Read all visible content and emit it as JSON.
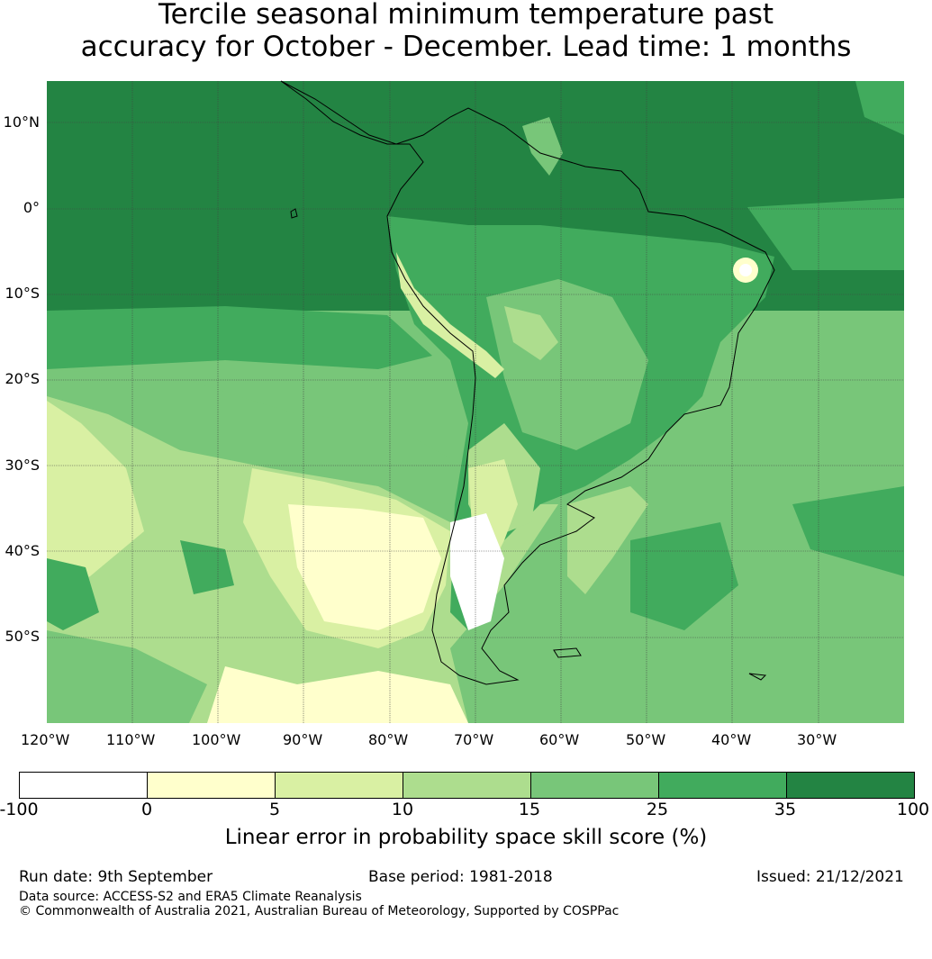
{
  "title_line1": "Tercile seasonal minimum temperature past",
  "title_line2": "accuracy for October - December. Lead time: 1 months",
  "latitude_labels": [
    "10°N",
    "0°",
    "10°S",
    "20°S",
    "30°S",
    "40°S",
    "50°S"
  ],
  "longitude_labels": [
    "120°W",
    "110°W",
    "100°W",
    "90°W",
    "80°W",
    "70°W",
    "60°W",
    "50°W",
    "40°W",
    "30°W"
  ],
  "colorbar": {
    "ticks": [
      "-100",
      "0",
      "5",
      "10",
      "15",
      "25",
      "35",
      "100"
    ],
    "colors": [
      "#ffffff",
      "#ffffcc",
      "#d9f0a3",
      "#addd8e",
      "#78c679",
      "#41ab5d",
      "#238443"
    ],
    "label": "Linear error in probability space skill score (%)"
  },
  "footer": {
    "run_date": "Run date: 9th September",
    "base_period": "Base period: 1981-2018",
    "issued": "Issued: 21/12/2021",
    "data_source": "Data source: ACCESS-S2 and ERA5 Climate Reanalysis",
    "copyright": "© Commonwealth of Australia 2021, Australian Bureau of Meteorology, Supported by COSPPac"
  }
}
